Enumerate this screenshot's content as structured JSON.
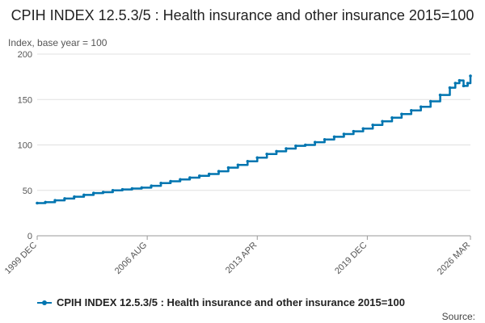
{
  "chart_data": {
    "type": "line",
    "title": "CPIH INDEX 12.5.3/5 : Health insurance and other insurance 2015=100",
    "ylabel": "Index, base year = 100",
    "xlabel": "",
    "ylim": [
      0,
      200
    ],
    "yticks": [
      0,
      50,
      100,
      150,
      200
    ],
    "xticks": [
      "1999 DEC",
      "2006 AUG",
      "2013 APR",
      "2019 DEC",
      "2026 MAR"
    ],
    "xlim": [
      "1999-12",
      "2026-03"
    ],
    "grid": true,
    "legend_position": "bottom",
    "series": [
      {
        "name": "CPIH INDEX 12.5.3/5 : Health insurance and other insurance 2015=100",
        "color": "#0075b0",
        "points": [
          [
            "1999-12",
            36
          ],
          [
            "2000-06",
            37
          ],
          [
            "2001-01",
            39
          ],
          [
            "2001-08",
            41
          ],
          [
            "2002-03",
            43
          ],
          [
            "2002-10",
            45
          ],
          [
            "2003-05",
            47
          ],
          [
            "2003-12",
            48
          ],
          [
            "2004-07",
            50
          ],
          [
            "2005-02",
            51
          ],
          [
            "2005-09",
            52
          ],
          [
            "2006-04",
            53
          ],
          [
            "2006-11",
            55
          ],
          [
            "2007-06",
            58
          ],
          [
            "2008-01",
            60
          ],
          [
            "2008-08",
            62
          ],
          [
            "2009-03",
            64
          ],
          [
            "2009-10",
            66
          ],
          [
            "2010-05",
            68
          ],
          [
            "2010-12",
            71
          ],
          [
            "2011-07",
            75
          ],
          [
            "2012-02",
            78
          ],
          [
            "2012-09",
            82
          ],
          [
            "2013-04",
            86
          ],
          [
            "2013-11",
            90
          ],
          [
            "2014-06",
            93
          ],
          [
            "2015-01",
            96
          ],
          [
            "2015-08",
            99
          ],
          [
            "2016-03",
            100
          ],
          [
            "2016-10",
            103
          ],
          [
            "2017-05",
            106
          ],
          [
            "2017-12",
            109
          ],
          [
            "2018-07",
            112
          ],
          [
            "2019-02",
            115
          ],
          [
            "2019-09",
            118
          ],
          [
            "2020-04",
            122
          ],
          [
            "2020-11",
            126
          ],
          [
            "2021-06",
            130
          ],
          [
            "2022-01",
            134
          ],
          [
            "2022-08",
            138
          ],
          [
            "2023-03",
            142
          ],
          [
            "2023-10",
            148
          ],
          [
            "2024-05",
            155
          ],
          [
            "2024-12",
            163
          ],
          [
            "2025-04",
            168
          ],
          [
            "2025-07",
            171
          ],
          [
            "2025-10",
            165
          ],
          [
            "2026-01",
            168
          ],
          [
            "2026-03",
            176
          ]
        ]
      }
    ],
    "source": "Source:"
  }
}
